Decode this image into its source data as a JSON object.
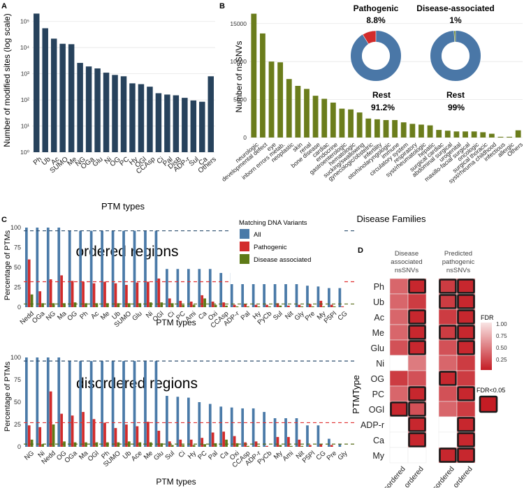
{
  "panel_letters": {
    "a": "A",
    "b": "B",
    "c": "C",
    "d": "D"
  },
  "colors": {
    "navy": "#27425c",
    "olive": "#6b7d1c",
    "all": "#4a7aa8",
    "pathogenic": "#d22b2b",
    "disease": "#5e7a17",
    "rest": "#4a77a7",
    "grid": "#e6e6e6",
    "dash_blue": "#2f4f6f",
    "dash_red": "#e03030",
    "dash_olive": "#556b17"
  },
  "donuts": {
    "pathogenic": {
      "title": "Pathogenic",
      "pct": "8.8%",
      "rest_label": "Rest",
      "rest_pct": "91.2%",
      "value": 8.8
    },
    "disease": {
      "title": "Disease-associated",
      "pct": "1%",
      "rest_label": "Rest",
      "rest_pct": "99%",
      "value": 1
    }
  },
  "chart_data": [
    {
      "id": "A",
      "type": "bar",
      "scale": "log10",
      "xlabel": "PTM types",
      "ylabel": "Number of modified sites (log scale)",
      "yticks": [
        "10⁰",
        "10¹",
        "10²",
        "10³",
        "10⁴",
        "10⁵"
      ],
      "categories": [
        "Ph",
        "Ub",
        "Ac",
        "SUMO",
        "Me",
        "NG",
        "OGa",
        "Glu",
        "Ni",
        "OG",
        "PC",
        "Hy",
        "OGl",
        "CCAsp",
        "Ci",
        "Pal",
        "DisB",
        "ADP-r",
        "Sul",
        "Ca",
        "Others"
      ],
      "values": [
        200000,
        55000,
        22000,
        14000,
        13500,
        2600,
        1900,
        1600,
        1100,
        900,
        800,
        430,
        400,
        320,
        180,
        160,
        150,
        120,
        95,
        85,
        800
      ]
    },
    {
      "id": "B",
      "type": "bar",
      "xlabel": "Disease Families",
      "ylabel": "Number of nsSNVs",
      "yticks": [
        "0",
        "5000",
        "10000",
        "15000"
      ],
      "ylim": [
        0,
        17000
      ],
      "categories": [
        "neurologic",
        "developmental defect",
        "eye",
        "inborn errors metab.",
        "neoplastic",
        "skin",
        "renal",
        "bone disease",
        "cardiac",
        "endocrine",
        "gastroenterologic",
        "hematologic",
        "sucking/swallowing",
        "gynecologic/obstetric",
        "infertility",
        "otorhinolaryngologic",
        "immune",
        "circulatory system",
        "respiratory",
        "syst/rheumatologic",
        "hepatic",
        "surgical cardiac",
        "abdominal surgical",
        "urogenital",
        "maxillo-facial surgical",
        "oncologic",
        "surgical thoracic",
        "syst/rheuma childhood",
        "infectious",
        "allergic",
        "Others"
      ],
      "values": [
        16300,
        13700,
        10000,
        9900,
        7700,
        6800,
        6400,
        5500,
        5100,
        4600,
        3800,
        3700,
        3300,
        2500,
        2400,
        2300,
        2300,
        2000,
        1800,
        1700,
        1600,
        1000,
        900,
        800,
        800,
        800,
        700,
        500,
        100,
        100,
        950
      ]
    },
    {
      "id": "C-ordered",
      "type": "bar",
      "region_label": "ordered regions",
      "xlabel": "PTM types",
      "ylabel": "Percentage of PTMs",
      "yticks": [
        "0",
        "25",
        "50",
        "75",
        "100"
      ],
      "ylim": [
        0,
        100
      ],
      "legend": {
        "title": "Matching DNA Variants",
        "items": [
          "All",
          "Pathogenic",
          "Disease associated"
        ]
      },
      "categories": [
        "Nedd",
        "OGa",
        "NG",
        "Ma",
        "OG",
        "Ph",
        "Ac",
        "Me",
        "Ub",
        "SUMO",
        "Glu",
        "Ni",
        "OGl",
        "Ci",
        "PC",
        "Ami",
        "Ca",
        "Oxi",
        "CCAsp",
        "ADP-r",
        "Pal",
        "Hy",
        "PyCb",
        "Sul",
        "Nit",
        "Gly",
        "Pre",
        "My",
        "P5Pl",
        "CG"
      ],
      "series": [
        {
          "name": "All",
          "values": [
            100,
            100,
            100,
            100,
            96,
            96,
            96,
            96,
            96,
            96,
            96,
            96,
            96,
            48,
            48,
            48,
            48,
            48,
            43,
            43,
            39,
            39,
            39,
            37,
            33,
            31,
            27,
            26,
            24,
            24
          ]
        },
        {
          "name": "Pathogenic",
          "values": [
            60,
            20,
            35,
            40,
            33,
            32,
            30,
            32,
            30,
            28,
            31,
            32,
            36,
            11,
            8,
            7,
            15,
            7,
            6,
            3,
            4,
            3,
            3,
            5,
            2,
            3,
            4,
            8,
            3,
            1
          ]
        },
        {
          "name": "Disease associated",
          "values": [
            16,
            5,
            5,
            5,
            6,
            5,
            5,
            5,
            5,
            5,
            5,
            6,
            6,
            5,
            3,
            3,
            11,
            3,
            2,
            1,
            1,
            1,
            1,
            2,
            0,
            1,
            1,
            1,
            1,
            0
          ]
        }
      ],
      "reference_lines": {
        "all": 96,
        "pathogenic": 32,
        "disease": 4
      }
    },
    {
      "id": "C-disordered",
      "type": "bar",
      "region_label": "disordered regions",
      "xlabel": "PTM types",
      "ylabel": "Percentage of PTMs",
      "yticks": [
        "0",
        "25",
        "50",
        "75",
        "100"
      ],
      "ylim": [
        0,
        100
      ],
      "categories": [
        "NG",
        "Ni",
        "Nedd",
        "OG",
        "OGa",
        "Ma",
        "OGl",
        "Ph",
        "SUMO",
        "Ub",
        "Ace",
        "Me",
        "Glu",
        "Sul",
        "Ci",
        "Hy",
        "PC",
        "Pal",
        "Ca",
        "Oxi",
        "CCAsp",
        "ADP-r",
        "PyCb",
        "My",
        "Ami",
        "Nit",
        "P5Pl",
        "CG",
        "Pre",
        "Gly"
      ],
      "series": [
        {
          "name": "All",
          "values": [
            100,
            100,
            100,
            100,
            96,
            96,
            96,
            96,
            96,
            96,
            96,
            96,
            96,
            57,
            56,
            55,
            50,
            48,
            45,
            44,
            43,
            43,
            39,
            32,
            32,
            32,
            24,
            24,
            9,
            3
          ]
        },
        {
          "name": "Pathogenic",
          "values": [
            24,
            22,
            62,
            37,
            35,
            39,
            31,
            27,
            21,
            25,
            23,
            28,
            18,
            6,
            8,
            8,
            10,
            16,
            17,
            12,
            5,
            6,
            1,
            11,
            11,
            8,
            2,
            3,
            2,
            0
          ]
        },
        {
          "name": "Disease associated",
          "values": [
            8,
            3,
            25,
            6,
            5,
            5,
            5,
            5,
            5,
            6,
            5,
            5,
            4,
            2,
            2,
            2,
            3,
            4,
            8,
            4,
            1,
            1,
            0,
            2,
            1,
            1,
            0,
            0,
            0,
            0
          ]
        }
      ],
      "reference_lines": {
        "all": 96,
        "pathogenic": 27,
        "disease": 3
      }
    },
    {
      "id": "D",
      "type": "heatmap",
      "ylabel": "PTMType",
      "rows": [
        "Ph",
        "Ub",
        "Ac",
        "Me",
        "Glu",
        "Ni",
        "OG",
        "PC",
        "OGl",
        "ADP-r",
        "Ca",
        "My"
      ],
      "groups": [
        {
          "title_lines": [
            "Disease",
            "associated",
            "nsSNVs"
          ],
          "columns": [
            "disordered",
            "ordered"
          ]
        },
        {
          "title_lines": [
            "Predicted",
            "pathogenic",
            "nsSNVs"
          ],
          "columns": [
            "disordered",
            "ordered"
          ]
        }
      ],
      "fdr": [
        [
          [
            0.4,
            0.1
          ],
          [
            0.2,
            0.1
          ]
        ],
        [
          [
            0.4,
            0.2
          ],
          [
            0.2,
            0.1
          ]
        ],
        [
          [
            0.4,
            0.1
          ],
          [
            0.2,
            0.1
          ]
        ],
        [
          [
            0.4,
            0.1
          ],
          [
            0.2,
            0.1
          ]
        ],
        [
          [
            0.3,
            0.1
          ],
          [
            0.3,
            0.1
          ]
        ],
        [
          [
            null,
            0.5
          ],
          [
            0.4,
            0.2
          ]
        ],
        [
          [
            0.2,
            0.3
          ],
          [
            0.1,
            0.2
          ]
        ],
        [
          [
            0.4,
            0.1
          ],
          [
            0.3,
            0.1
          ]
        ],
        [
          [
            0.1,
            0.3
          ],
          [
            0.4,
            0.2
          ]
        ],
        [
          [
            null,
            0.1
          ],
          [
            null,
            0.1
          ]
        ],
        [
          [
            null,
            0.1
          ],
          [
            null,
            0.1
          ]
        ],
        [
          [
            null,
            null
          ],
          [
            0.1,
            0.1
          ]
        ]
      ],
      "significant": [
        [
          [
            false,
            true
          ],
          [
            true,
            true
          ]
        ],
        [
          [
            false,
            false
          ],
          [
            true,
            true
          ]
        ],
        [
          [
            false,
            true
          ],
          [
            false,
            true
          ]
        ],
        [
          [
            false,
            true
          ],
          [
            true,
            true
          ]
        ],
        [
          [
            false,
            true
          ],
          [
            false,
            true
          ]
        ],
        [
          [
            false,
            false
          ],
          [
            false,
            false
          ]
        ],
        [
          [
            false,
            false
          ],
          [
            true,
            false
          ]
        ],
        [
          [
            false,
            true
          ],
          [
            false,
            true
          ]
        ],
        [
          [
            true,
            true
          ],
          [
            false,
            false
          ]
        ],
        [
          [
            false,
            true
          ],
          [
            false,
            true
          ]
        ],
        [
          [
            false,
            true
          ],
          [
            false,
            true
          ]
        ],
        [
          [
            false,
            false
          ],
          [
            true,
            true
          ]
        ]
      ],
      "legend": {
        "title": "FDR",
        "ticks": [
          "1.00",
          "0.75",
          "0.50",
          "0.25"
        ],
        "sig_label": "FDR<0.05"
      }
    }
  ]
}
